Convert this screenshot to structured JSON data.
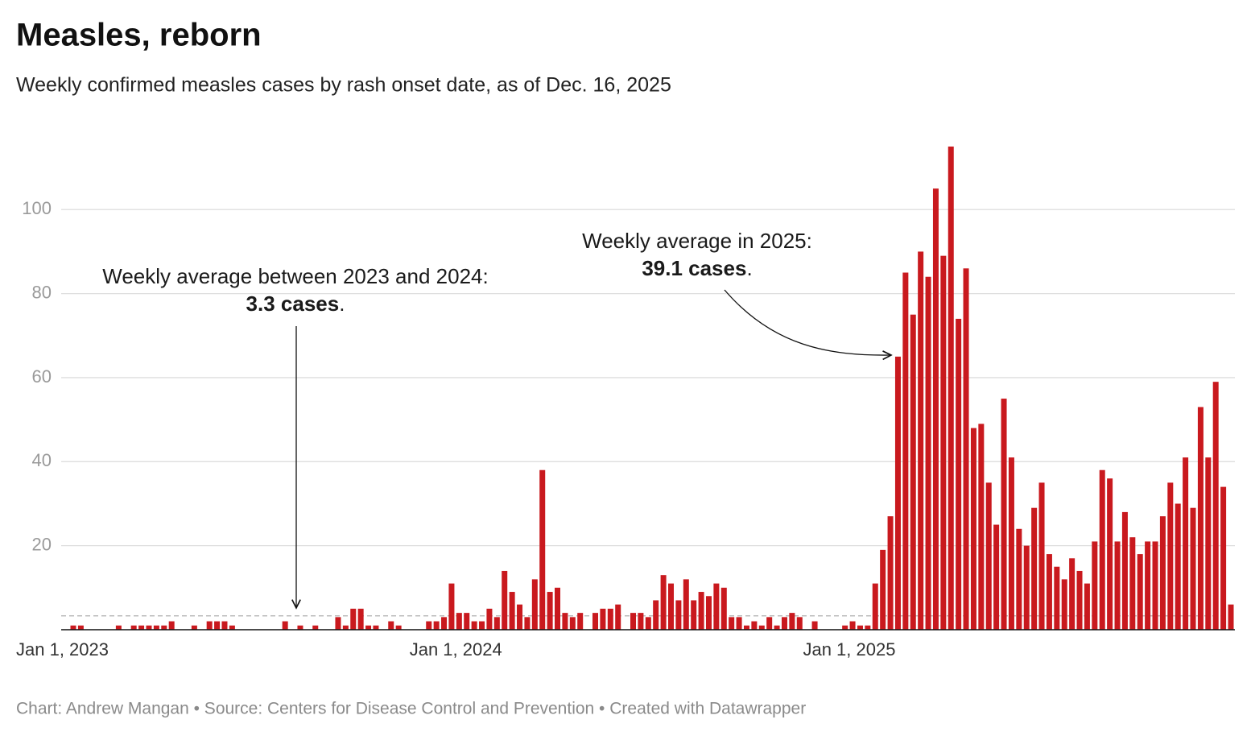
{
  "chart_data": {
    "type": "bar",
    "title": "Measles, reborn",
    "subtitle": "Weekly confirmed measles cases by rash onset date, as of Dec. 16, 2025",
    "footer": "Chart: Andrew Mangan • Source: Centers for Disease Control and Prevention • Created with Datawrapper",
    "color": "#c9191e",
    "ylim": [
      0,
      115
    ],
    "yticks": [
      20,
      40,
      60,
      80,
      100
    ],
    "grid": true,
    "categories": [
      "Jan 1, 2023",
      null,
      null,
      null,
      null,
      null,
      null,
      null,
      null,
      null,
      null,
      null,
      null,
      null,
      null,
      null,
      null,
      null,
      null,
      null,
      null,
      null,
      null,
      null,
      null,
      null,
      null,
      null,
      null,
      null,
      null,
      null,
      null,
      null,
      null,
      null,
      null,
      null,
      null,
      null,
      null,
      null,
      null,
      null,
      null,
      null,
      null,
      null,
      null,
      null,
      null,
      null,
      "Jan 1, 2024",
      null,
      null,
      null,
      null,
      null,
      null,
      null,
      null,
      null,
      null,
      null,
      null,
      null,
      null,
      null,
      null,
      null,
      null,
      null,
      null,
      null,
      null,
      null,
      null,
      null,
      null,
      null,
      null,
      null,
      null,
      null,
      null,
      null,
      null,
      null,
      null,
      null,
      null,
      null,
      null,
      null,
      null,
      null,
      null,
      null,
      null,
      null,
      null,
      null,
      null,
      null,
      "Jan 1, 2025",
      null,
      null,
      null,
      null,
      null,
      null,
      null,
      null,
      null,
      null,
      null,
      null,
      null,
      null,
      null,
      null,
      null,
      null,
      null,
      null,
      null,
      null,
      null,
      null,
      null,
      null,
      null,
      null,
      null,
      null,
      null,
      null,
      null,
      null,
      null,
      null,
      null,
      null,
      null,
      null,
      null,
      null,
      null,
      null,
      null,
      null,
      null,
      null,
      null
    ],
    "values": [
      1,
      1,
      0,
      0,
      0,
      0,
      1,
      0,
      1,
      1,
      1,
      1,
      1,
      2,
      0,
      0,
      1,
      0,
      2,
      2,
      2,
      1,
      0,
      0,
      0,
      0,
      0,
      0,
      2,
      0,
      1,
      0,
      1,
      0,
      0,
      3,
      1,
      5,
      5,
      1,
      1,
      0,
      2,
      1,
      0,
      0,
      0,
      2,
      2,
      3,
      11,
      4,
      4,
      2,
      2,
      5,
      3,
      14,
      9,
      6,
      3,
      12,
      38,
      9,
      10,
      4,
      3,
      4,
      0,
      4,
      5,
      5,
      6,
      0,
      4,
      4,
      3,
      7,
      13,
      11,
      7,
      12,
      7,
      9,
      8,
      11,
      10,
      3,
      3,
      1,
      2,
      1,
      3,
      1,
      3,
      4,
      3,
      0,
      2,
      0,
      0,
      0,
      1,
      2,
      1,
      1,
      11,
      19,
      27,
      65,
      85,
      75,
      90,
      84,
      105,
      89,
      115,
      74,
      86,
      48,
      49,
      35,
      25,
      55,
      41,
      24,
      20,
      29,
      35,
      18,
      15,
      12,
      17,
      14,
      11,
      21,
      38,
      36,
      21,
      28,
      22,
      18,
      21,
      21,
      27,
      35,
      30,
      41,
      29,
      53,
      41,
      59,
      34,
      6
    ],
    "reference_value": 3.3,
    "annotations": [
      {
        "text": "Weekly average between 2023 and 2024:",
        "bold": "3.3 cases",
        "tail": "."
      },
      {
        "text": "Weekly average in 2025:",
        "bold": "39.1 cases",
        "tail": "."
      }
    ]
  }
}
